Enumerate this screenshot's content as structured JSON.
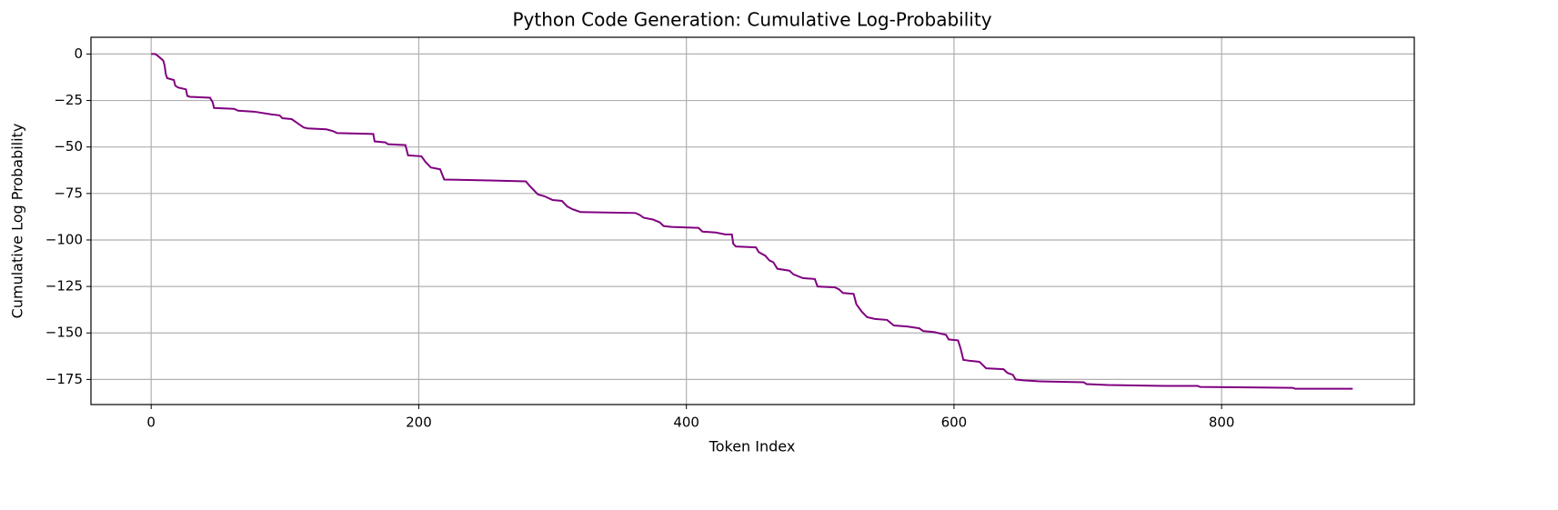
{
  "chart_data": {
    "type": "line",
    "title": "Python Code Generation: Cumulative Log-Probability",
    "x_label": "Token Index",
    "y_label": "Cumulative Log Probability",
    "xlim": [
      -45,
      944
    ],
    "ylim": [
      -188.5,
      9
    ],
    "xticks": [
      0,
      200,
      400,
      600,
      800
    ],
    "yticks": [
      0,
      {
        "value": -25,
        "label": "−25"
      },
      {
        "value": -50,
        "label": "−50"
      },
      {
        "value": -75,
        "label": "−75"
      },
      {
        "value": -100,
        "label": "−100"
      },
      {
        "value": -125,
        "label": "−125"
      },
      {
        "value": -150,
        "label": "−150"
      },
      {
        "value": -175,
        "label": "−175"
      }
    ],
    "grid": true,
    "series": [
      {
        "color": "#800080",
        "x": [
          0,
          3,
          5,
          9,
          10,
          11,
          12,
          17,
          18,
          20,
          26,
          27,
          29,
          44,
          46,
          47,
          62,
          65,
          77,
          90,
          96,
          98,
          105,
          107,
          111,
          114,
          117,
          131,
          136,
          139,
          166,
          167,
          175,
          177,
          190,
          192,
          202,
          205,
          209,
          216,
          219,
          253,
          280,
          283,
          289,
          294,
          300,
          307,
          311,
          315,
          321,
          362,
          365,
          368,
          375,
          380,
          383,
          389,
          409,
          412,
          422,
          429,
          434,
          435,
          437,
          452,
          454,
          459,
          462,
          465,
          468,
          477,
          480,
          487,
          496,
          498,
          511,
          514,
          517,
          525,
          527,
          531,
          535,
          541,
          550,
          555,
          565,
          574,
          577,
          585,
          594,
          596,
          603,
          605,
          607,
          612,
          619,
          624,
          637,
          640,
          644,
          646,
          652,
          663,
          697,
          699,
          715,
          759,
          782,
          784,
          853,
          855,
          898
        ],
        "values": [
          0,
          0,
          -1,
          -3.5,
          -6,
          -11,
          -13,
          -14,
          -17,
          -18,
          -19,
          -22.5,
          -23,
          -23.5,
          -26,
          -29,
          -29.5,
          -30.5,
          -31,
          -32.5,
          -33,
          -34.5,
          -35,
          -36,
          -38,
          -39.5,
          -40,
          -40.5,
          -41.5,
          -42.5,
          -43,
          -47,
          -47.5,
          -48.5,
          -49,
          -54.5,
          -55,
          -58,
          -61,
          -62,
          -67.5,
          -68,
          -68.5,
          -71,
          -75.5,
          -76.5,
          -78.5,
          -79,
          -82,
          -83.5,
          -85,
          -85.5,
          -86.5,
          -88,
          -89,
          -90.5,
          -92.5,
          -93,
          -93.5,
          -95.5,
          -96,
          -97,
          -97,
          -102,
          -103.5,
          -104,
          -106.5,
          -108.5,
          -111,
          -112,
          -115.5,
          -116.5,
          -118.5,
          -120.5,
          -121,
          -125,
          -125.5,
          -126.5,
          -128.5,
          -129,
          -134.5,
          -138.5,
          -141.5,
          -142.5,
          -143,
          -146,
          -146.5,
          -147.5,
          -149,
          -149.5,
          -151,
          -153.5,
          -154,
          -158.5,
          -164.5,
          -165,
          -165.5,
          -169,
          -169.5,
          -171.5,
          -172.5,
          -175,
          -175.5,
          -176,
          -176.5,
          -177.5,
          -178,
          -178.5,
          -178.5,
          -179,
          -179.5,
          -180,
          -180
        ]
      }
    ]
  }
}
